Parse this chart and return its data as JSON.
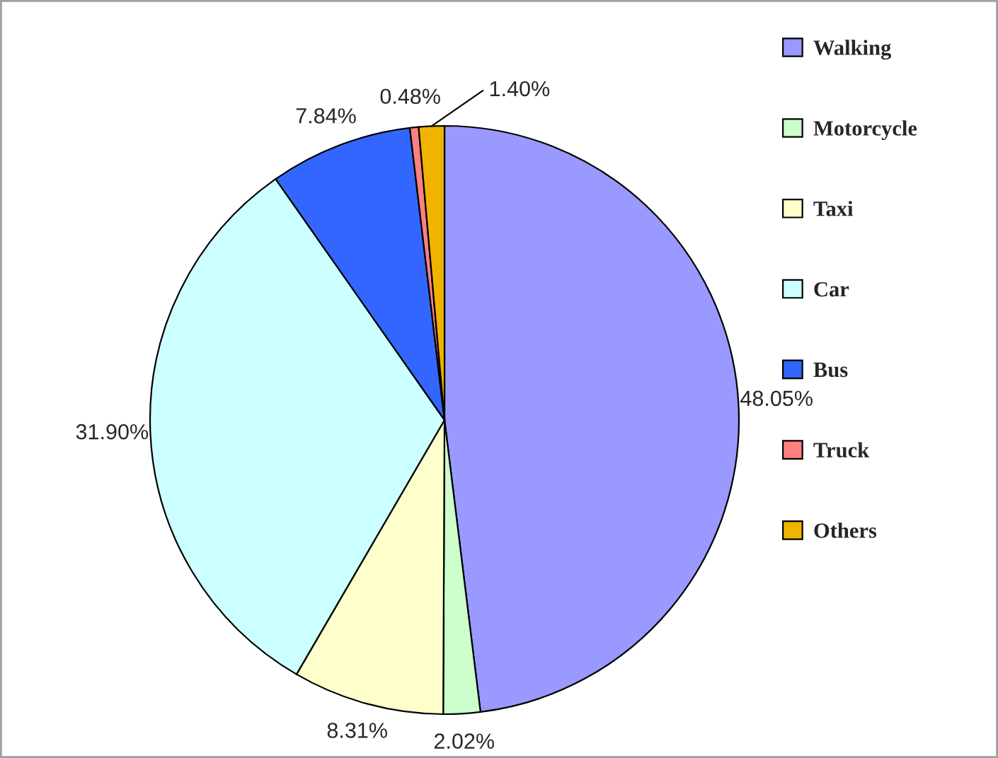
{
  "chart_data": {
    "type": "pie",
    "categories": [
      "Walking",
      "Motorcycle",
      "Taxi",
      "Car",
      "Bus",
      "Truck",
      "Others"
    ],
    "values": [
      48.05,
      2.02,
      8.31,
      31.9,
      7.84,
      0.48,
      1.4
    ],
    "value_labels": [
      "48.05%",
      "2.02%",
      "8.31%",
      "31.90%",
      "7.84%",
      "0.48%",
      "1.40%"
    ],
    "colors": [
      "#9999ff",
      "#ccffcc",
      "#ffffcc",
      "#ccffff",
      "#3366ff",
      "#ff8080",
      "#f0b400"
    ],
    "legend": "right"
  }
}
